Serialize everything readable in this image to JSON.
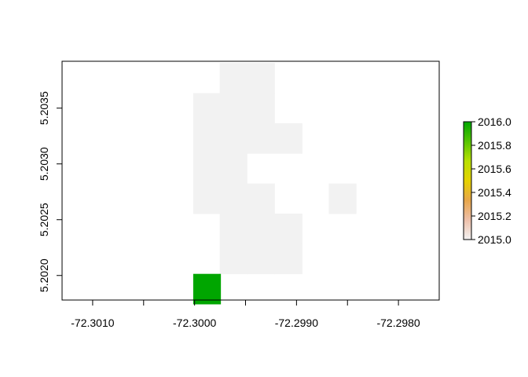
{
  "chart_data": {
    "type": "heatmap",
    "title": "",
    "xlabel": "",
    "ylabel": "",
    "xlim": [
      -72.3013,
      -72.2976
    ],
    "ylim": [
      5.20178,
      5.20392
    ],
    "x_ticks": [
      {
        "value": -72.301,
        "label": "-72.3010"
      },
      {
        "value": -72.3005,
        "label": ""
      },
      {
        "value": -72.3,
        "label": "-72.3000"
      },
      {
        "value": -72.2995,
        "label": ""
      },
      {
        "value": -72.299,
        "label": "-72.2990"
      },
      {
        "value": -72.2985,
        "label": ""
      },
      {
        "value": -72.298,
        "label": "-72.2980"
      }
    ],
    "y_ticks": [
      {
        "value": 5.202,
        "label": "5.2020"
      },
      {
        "value": 5.2025,
        "label": "5.2025"
      },
      {
        "value": 5.203,
        "label": "5.2030"
      },
      {
        "value": 5.2035,
        "label": "5.2035"
      }
    ],
    "cell_width": 0.000267,
    "cell_height": 0.000269,
    "cells": [
      {
        "x": -72.29935,
        "y": 5.20377,
        "value": 2015.0
      },
      {
        "x": -72.29962,
        "y": 5.20377,
        "value": 2015.0
      },
      {
        "x": -72.29935,
        "y": 5.2035,
        "value": 2015.0
      },
      {
        "x": -72.29962,
        "y": 5.2035,
        "value": 2015.0
      },
      {
        "x": -72.29988,
        "y": 5.2035,
        "value": 2015.0
      },
      {
        "x": -72.29962,
        "y": 5.20323,
        "value": 2015.0
      },
      {
        "x": -72.29988,
        "y": 5.20323,
        "value": 2015.0
      },
      {
        "x": -72.29935,
        "y": 5.20323,
        "value": 2015.0
      },
      {
        "x": -72.29908,
        "y": 5.20323,
        "value": 2015.0
      },
      {
        "x": -72.29962,
        "y": 5.20296,
        "value": 2015.0
      },
      {
        "x": -72.29988,
        "y": 5.20296,
        "value": 2015.0
      },
      {
        "x": -72.29962,
        "y": 5.20269,
        "value": 2015.0
      },
      {
        "x": -72.29988,
        "y": 5.20269,
        "value": 2015.0
      },
      {
        "x": -72.29935,
        "y": 5.20269,
        "value": 2015.0
      },
      {
        "x": -72.29855,
        "y": 5.20269,
        "value": 2015.0
      },
      {
        "x": -72.29962,
        "y": 5.20242,
        "value": 2015.0
      },
      {
        "x": -72.29935,
        "y": 5.20242,
        "value": 2015.0
      },
      {
        "x": -72.29908,
        "y": 5.20242,
        "value": 2015.0
      },
      {
        "x": -72.29962,
        "y": 5.20215,
        "value": 2015.0
      },
      {
        "x": -72.29935,
        "y": 5.20215,
        "value": 2015.0
      },
      {
        "x": -72.29908,
        "y": 5.20215,
        "value": 2015.0
      },
      {
        "x": -72.29988,
        "y": 5.20188,
        "value": 2016.0
      }
    ],
    "legend": {
      "placement": "right",
      "min": 2015.0,
      "max": 2016.0,
      "ticks": [
        {
          "value": 2016.0,
          "label": "2016.0"
        },
        {
          "value": 2015.8,
          "label": "2015.8"
        },
        {
          "value": 2015.6,
          "label": "2015.6"
        },
        {
          "value": 2015.4,
          "label": "2015.4"
        },
        {
          "value": 2015.2,
          "label": "2015.2"
        },
        {
          "value": 2015.0,
          "label": "2015.0"
        }
      ],
      "gradient_stops": [
        "#f2f2f2",
        "#eec0aa",
        "#e8a64a",
        "#e6d200",
        "#b9e000",
        "#55c400",
        "#00a600"
      ]
    },
    "grid": false
  }
}
